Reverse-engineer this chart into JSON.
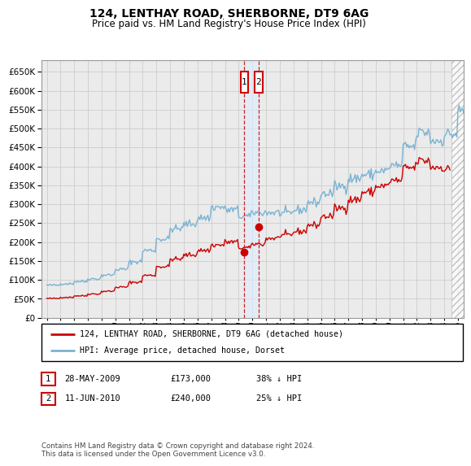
{
  "title": "124, LENTHAY ROAD, SHERBORNE, DT9 6AG",
  "subtitle": "Price paid vs. HM Land Registry's House Price Index (HPI)",
  "yticks": [
    0,
    50000,
    100000,
    150000,
    200000,
    250000,
    300000,
    350000,
    400000,
    450000,
    500000,
    550000,
    600000,
    650000
  ],
  "ylim": [
    0,
    680000
  ],
  "background_color": "#ffffff",
  "grid_color": "#cccccc",
  "plot_bg_color": "#ebebeb",
  "hpi_color": "#7ab3d4",
  "price_color": "#cc0000",
  "legend_label_price": "124, LENTHAY ROAD, SHERBORNE, DT9 6AG (detached house)",
  "legend_label_hpi": "HPI: Average price, detached house, Dorset",
  "transaction1_date": "28-MAY-2009",
  "transaction1_price": 173000,
  "transaction1_pct": "38%",
  "transaction2_date": "11-JUN-2010",
  "transaction2_price": 240000,
  "transaction2_pct": "25%",
  "footnote": "Contains HM Land Registry data © Crown copyright and database right 2024.\nThis data is licensed under the Open Government Licence v3.0.",
  "transaction_x1": 2009.42,
  "transaction_x2": 2010.45,
  "transaction_y1": 173000,
  "transaction_y2": 240000,
  "hatch_region_start": 2024.55,
  "hatch_region_end": 2025.4,
  "xlim_start": 1994.6,
  "xlim_end": 2025.4
}
